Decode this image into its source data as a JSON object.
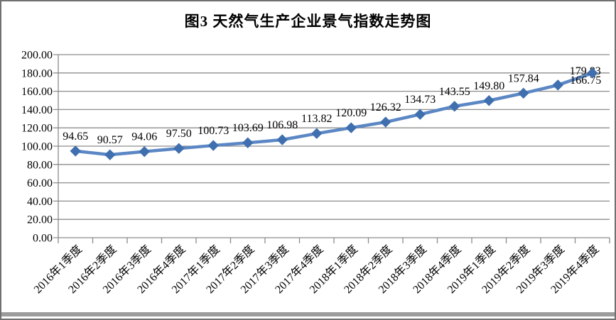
{
  "chart_data": {
    "type": "line",
    "title": "图3 天然气生产企业景气指数走势图",
    "categories": [
      "2016年1季度",
      "2016年2季度",
      "2016年3季度",
      "2016年4季度",
      "2017年1季度",
      "2017年2季度",
      "2017年3季度",
      "2017年4季度",
      "2018年1季度",
      "2018年2季度",
      "2018年3季度",
      "2018年4季度",
      "2019年1季度",
      "2019年2季度",
      "2019年3季度",
      "2019年4季度"
    ],
    "values": [
      94.65,
      90.57,
      94.06,
      97.5,
      100.73,
      103.69,
      106.98,
      113.82,
      120.09,
      126.32,
      134.73,
      143.55,
      149.8,
      157.84,
      166.75,
      179.83
    ],
    "data_labels": [
      "94.65",
      "90.57",
      "94.06",
      "97.50",
      "100.73",
      "103.69",
      "106.98",
      "113.82",
      "120.09",
      "126.32",
      "134.73",
      "143.55",
      "149.80",
      "157.84",
      "166.75",
      "179.83"
    ],
    "xlabel": "",
    "ylabel": "",
    "ylim": [
      0,
      200
    ],
    "ytick_step": 20,
    "ytick_labels": [
      "200.00",
      "180.00",
      "160.00",
      "140.00",
      "120.00",
      "100.00",
      "80.00",
      "60.00",
      "40.00",
      "20.00",
      "0.00"
    ],
    "grid": "horizontal",
    "legend": "none",
    "marker": "diamond"
  },
  "colors": {
    "line": "#5b87c5",
    "marker": "#3f6fae",
    "grid": "#8c8c8c",
    "axis": "#8c8c8c",
    "text": "#000000",
    "border": "#717171",
    "bottom_bar": "#9c9c9c",
    "background": "#ffffff"
  }
}
